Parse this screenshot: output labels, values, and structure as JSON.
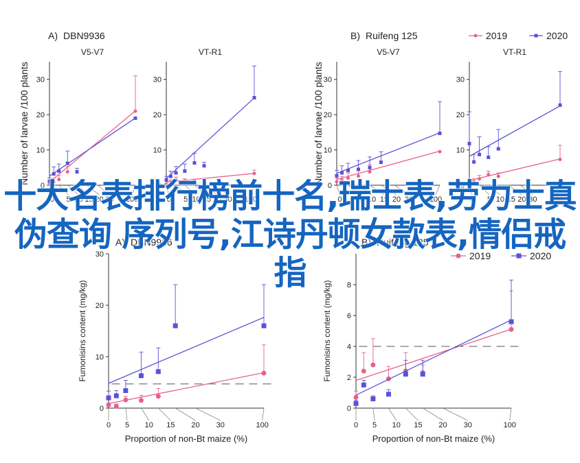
{
  "overlay_title": "十大名表排行榜前十名,瑞士表,劳力士真伪查询 序列号,江诗丹顿女款表,情侣戒指",
  "colors": {
    "y2019": "#e8608c",
    "y2020": "#5a52d6",
    "axis": "#333333",
    "threshold": "#555555"
  },
  "chart_data": [
    {
      "type": "line",
      "panel_label": "A)",
      "title": "DBN9936",
      "subtitle": "V5-V7",
      "ylabel": "Number of larvae /100 plants",
      "xlabel": "",
      "xlim": [
        0,
        100
      ],
      "ylim": [
        0,
        35
      ],
      "y_ticks": [
        0,
        10,
        20,
        30
      ],
      "x_tick_labels": [
        "0",
        "5",
        "10",
        "15",
        "20",
        "30",
        "100"
      ],
      "series": [
        {
          "name": "2019",
          "x": [
            0,
            2,
            5,
            10,
            100
          ],
          "y": [
            0.6,
            1.0,
            1.6,
            3.8,
            21.0
          ],
          "err": [
            0.5,
            1.0,
            1.2,
            1.5,
            10.0
          ]
        },
        {
          "name": "2020",
          "x": [
            0,
            2,
            5,
            10,
            15,
            100
          ],
          "y": [
            1.1,
            3.2,
            4.0,
            6.2,
            3.8,
            19.0
          ],
          "err": [
            1.0,
            2.0,
            2.0,
            3.5,
            1.0,
            0
          ]
        }
      ]
    },
    {
      "type": "line",
      "panel_label": "",
      "title": "",
      "subtitle": "VT-R1",
      "ylabel": "",
      "xlabel": "",
      "xlim": [
        0,
        100
      ],
      "ylim": [
        0,
        35
      ],
      "y_ticks": [
        0,
        10,
        20,
        30
      ],
      "x_tick_labels": [
        "0",
        "5",
        "10",
        "15",
        "20",
        "30",
        "100"
      ],
      "series": [
        {
          "name": "2019",
          "x": [
            0,
            2,
            5,
            10,
            15,
            100
          ],
          "y": [
            0.2,
            1.0,
            1.5,
            1.3,
            1.2,
            3.3
          ],
          "err": [
            0.3,
            0.5,
            0.8,
            0.5,
            0.5,
            1.0
          ]
        },
        {
          "name": "2020",
          "x": [
            0,
            2,
            5,
            10,
            15,
            20,
            100
          ],
          "y": [
            1.5,
            2.5,
            3.5,
            4.0,
            6.3,
            5.5,
            24.8
          ],
          "err": [
            1.0,
            1.5,
            1.8,
            2.0,
            2.8,
            1.0,
            9.0
          ]
        }
      ]
    },
    {
      "type": "line",
      "panel_label": "B)",
      "title": "Ruifeng 125",
      "subtitle": "V5-V7",
      "ylabel": "Number of larvae /100 plants",
      "xlabel": "",
      "xlim": [
        0,
        100
      ],
      "ylim": [
        0,
        35
      ],
      "y_ticks": [
        0,
        10,
        20,
        30
      ],
      "x_tick_labels": [
        "0",
        "5",
        "10",
        "15",
        "20",
        "30",
        "100"
      ],
      "series": [
        {
          "name": "2019",
          "x": [
            0,
            2,
            5,
            10,
            15,
            100
          ],
          "y": [
            1.0,
            1.5,
            2.0,
            2.6,
            3.8,
            9.5
          ],
          "err": [
            1.0,
            1.0,
            1.5,
            1.5,
            2.0,
            0
          ]
        },
        {
          "name": "2020",
          "x": [
            0,
            2,
            5,
            10,
            15,
            20,
            100
          ],
          "y": [
            2.7,
            3.5,
            4.2,
            4.5,
            5.0,
            6.5,
            14.7
          ],
          "err": [
            1.5,
            2.0,
            2.0,
            2.5,
            3.0,
            3.0,
            9.0
          ]
        }
      ]
    },
    {
      "type": "line",
      "panel_label": "",
      "title": "",
      "subtitle": "VT-R1",
      "ylabel": "",
      "xlabel": "",
      "xlim": [
        0,
        100
      ],
      "ylim": [
        0,
        35
      ],
      "y_ticks": [
        0,
        10,
        20,
        30
      ],
      "x_tick_labels": [
        "0",
        "5",
        "10",
        "15",
        "20",
        "30",
        "100"
      ],
      "legend_position": "top-right",
      "series": [
        {
          "name": "2019",
          "x": [
            0,
            2,
            5,
            10,
            15,
            100
          ],
          "y": [
            0.5,
            1.0,
            1.8,
            3.0,
            2.5,
            7.3
          ],
          "err": [
            0.5,
            0.8,
            1.0,
            1.0,
            1.0,
            4.0
          ]
        },
        {
          "name": "2020",
          "x": [
            0,
            2,
            5,
            10,
            15,
            100
          ],
          "y": [
            11.8,
            6.6,
            8.7,
            7.9,
            10.3,
            22.7
          ],
          "err": [
            9.0,
            2.0,
            5.0,
            3.0,
            5.5,
            9.5
          ]
        }
      ]
    },
    {
      "type": "line",
      "panel_label": "A)",
      "title": "DBN9936",
      "subtitle": "",
      "ylabel": "Fumonisins content (mg/kg)",
      "xlabel": "Proportion of non-Bt maize (%)",
      "xlim": [
        0,
        100
      ],
      "ylim": [
        0,
        30
      ],
      "y_ticks": [
        0,
        10,
        20,
        30
      ],
      "x_tick_labels": [
        "0",
        "5",
        "10",
        "15",
        "20",
        "30",
        "100"
      ],
      "threshold": 4.7,
      "series": [
        {
          "name": "2019",
          "x": [
            0,
            2,
            5,
            10,
            15,
            100
          ],
          "y": [
            0.6,
            0.4,
            1.6,
            1.5,
            2.3,
            6.8
          ],
          "err": [
            0.4,
            0.4,
            0.7,
            1.0,
            1.5,
            5.5
          ]
        },
        {
          "name": "2020",
          "x": [
            0,
            2,
            5,
            10,
            15,
            20,
            100
          ],
          "y": [
            2.0,
            2.4,
            3.4,
            6.3,
            7.1,
            16.0,
            16.0
          ],
          "err": [
            1.3,
            1.0,
            2.0,
            4.6,
            4.6,
            8.0,
            8.0
          ]
        }
      ]
    },
    {
      "type": "line",
      "panel_label": "B)",
      "title": "Ruifeng 125",
      "subtitle": "",
      "ylabel": "Fumonisins content (mg/kg)",
      "xlabel": "Proportion of non-Bt maize (%)",
      "xlim": [
        0,
        100
      ],
      "ylim": [
        0,
        10
      ],
      "y_ticks": [
        0,
        2,
        4,
        6,
        8
      ],
      "x_tick_labels": [
        "0",
        "5",
        "10",
        "15",
        "20",
        "30",
        "100"
      ],
      "threshold": 4.0,
      "legend_position": "top-right",
      "series": [
        {
          "name": "2019",
          "x": [
            0,
            2,
            5,
            10,
            15,
            20,
            100
          ],
          "y": [
            0.7,
            2.4,
            2.8,
            1.9,
            2.4,
            2.3,
            5.1
          ],
          "err": [
            0.4,
            1.2,
            1.7,
            0.8,
            1.2,
            0.5,
            2.5
          ]
        },
        {
          "name": "2020",
          "x": [
            0,
            2,
            5,
            10,
            15,
            20,
            100
          ],
          "y": [
            0.3,
            1.5,
            0.6,
            0.9,
            2.2,
            2.2,
            5.6
          ],
          "err": [
            0.2,
            0.3,
            0.2,
            0.3,
            0.9,
            0.9,
            2.7
          ]
        }
      ]
    }
  ],
  "legend": {
    "items": [
      "2019",
      "2020"
    ]
  }
}
